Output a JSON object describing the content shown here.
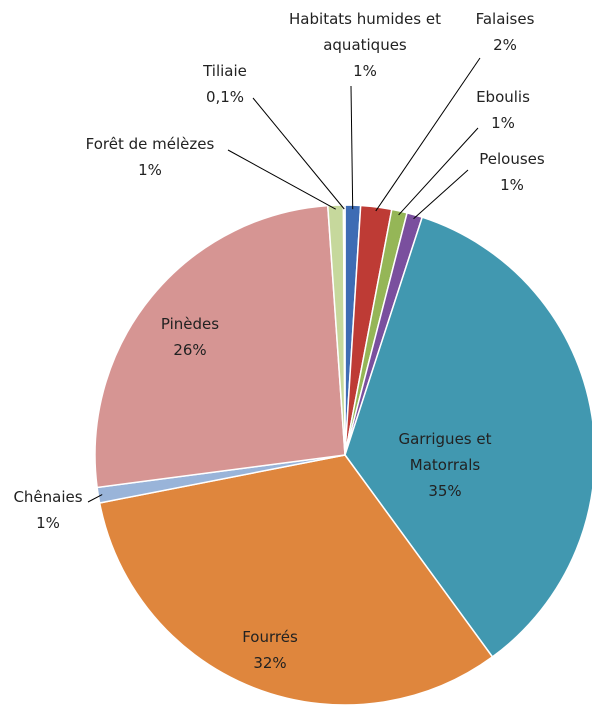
{
  "chart_data": {
    "type": "pie",
    "categories": [
      "Habitats humides et aquatiques",
      "Falaises",
      "Eboulis",
      "Pelouses",
      "Garrigues et Matorrals",
      "Fourrés",
      "Chênaies",
      "Pinèdes",
      "Forêt de mélèzes",
      "Tiliaie"
    ],
    "values": [
      1,
      2,
      1,
      1,
      35,
      32,
      1,
      26,
      1,
      0.1
    ],
    "value_labels": [
      "1%",
      "2%",
      "1%",
      "1%",
      "35%",
      "32%",
      "1%",
      "26%",
      "1%",
      "0,1%"
    ],
    "colors": [
      "#3e6cb4",
      "#be3b35",
      "#95b657",
      "#7a4f9e",
      "#4198b0",
      "#df863d",
      "#99b4d9",
      "#d69593",
      "#c6d89c",
      "#4472c4"
    ]
  }
}
